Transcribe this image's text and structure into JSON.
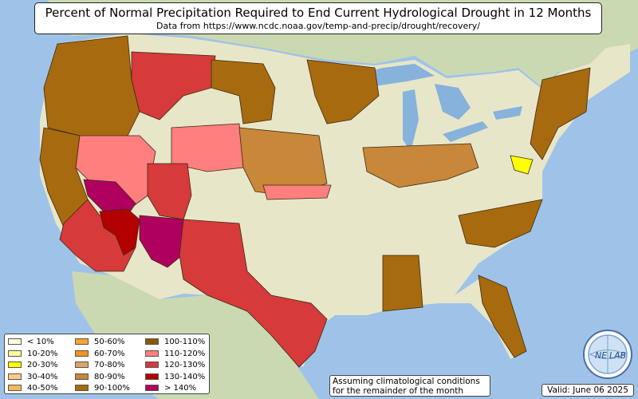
{
  "title": "Percent of Normal Precipitation Required to End Current Hydrological Drought in 12 Months",
  "subtitle": "Data from https://www.ncdc.noaa.gov/temp-and-precip/drought/recovery/",
  "note_line1": "Assuming climatological conditions",
  "note_line2": "for the remainder of the month",
  "valid": "Valid: June 06 2025",
  "logo": {
    "text_left": "NE",
    "text_right": "LAB",
    "icon": "globe-icon"
  },
  "colors": {
    "ocean": "#9fc3e8",
    "land_us": "#e8e6c8",
    "land_other": "#cbd9b3",
    "mountain": "#c9b68a",
    "lake": "#86b2dc"
  },
  "legend": [
    {
      "label": "< 10%",
      "color": "#ffffe3"
    },
    {
      "label": "10-20%",
      "color": "#ffff99"
    },
    {
      "label": "20-30%",
      "color": "#ffff00"
    },
    {
      "label": "30-40%",
      "color": "#fdcd86"
    },
    {
      "label": "40-50%",
      "color": "#fbb857"
    },
    {
      "label": "50-60%",
      "color": "#f7a433"
    },
    {
      "label": "60-70%",
      "color": "#f39221"
    },
    {
      "label": "70-80%",
      "color": "#dca468"
    },
    {
      "label": "80-90%",
      "color": "#c88739"
    },
    {
      "label": "90-100%",
      "color": "#a86a0e"
    },
    {
      "label": "100-110%",
      "color": "#8a5a0a"
    },
    {
      "label": "110-120%",
      "color": "#ff7f7f"
    },
    {
      "label": "120-130%",
      "color": "#d63a3a"
    },
    {
      "label": "130-140%",
      "color": "#b30000"
    },
    {
      "label": "> 140%",
      "color": "#b0005f"
    }
  ],
  "regions": [
    {
      "name": "pacific-northwest",
      "category": "90-100%"
    },
    {
      "name": "california-north",
      "category": "90-100%"
    },
    {
      "name": "great-basin-north",
      "category": "110-120%"
    },
    {
      "name": "nevada-central",
      "category": "> 140%"
    },
    {
      "name": "southern-california",
      "category": "120-130%"
    },
    {
      "name": "arizona-east",
      "category": "> 140%"
    },
    {
      "name": "colorado-river",
      "category": "130-140%"
    },
    {
      "name": "montana-north",
      "category": "120-130%"
    },
    {
      "name": "wyoming-south",
      "category": "110-120%"
    },
    {
      "name": "utah-colorado",
      "category": "120-130%"
    },
    {
      "name": "new-mexico-texas",
      "category": "120-130%"
    },
    {
      "name": "rocky-east",
      "category": "90-100%"
    },
    {
      "name": "plains-central",
      "category": "80-90%"
    },
    {
      "name": "kansas-band",
      "category": "110-120%"
    },
    {
      "name": "upper-midwest",
      "category": "90-100%"
    },
    {
      "name": "great-lakes",
      "category": "80-90%"
    },
    {
      "name": "mid-atlantic",
      "category": "20-30%"
    },
    {
      "name": "northeast",
      "category": "90-100%"
    },
    {
      "name": "southeast",
      "category": "90-100%"
    },
    {
      "name": "florida",
      "category": "90-100%"
    },
    {
      "name": "gulf-coast",
      "category": "90-100%"
    }
  ]
}
